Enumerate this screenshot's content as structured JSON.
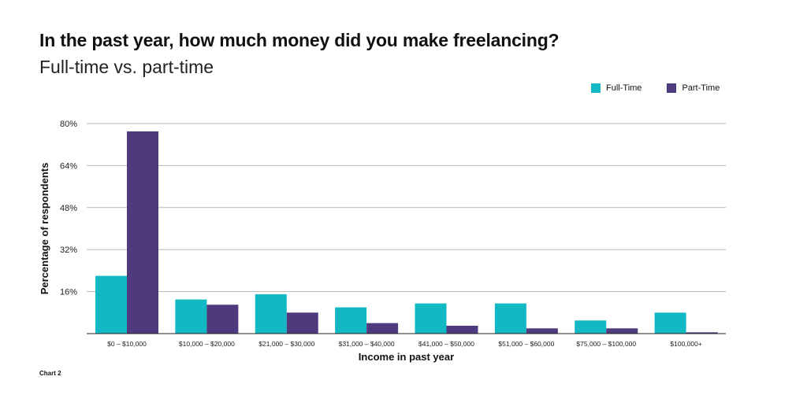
{
  "chart_data": {
    "type": "bar",
    "title": "In the past year, how much money did you make freelancing?",
    "subtitle": "Full-time vs. part-time",
    "xlabel": "Income in past year",
    "ylabel": "Percentage of respondents",
    "ylim": [
      0,
      80
    ],
    "yticks": [
      "16%",
      "32%",
      "48%",
      "64%",
      "80%"
    ],
    "ytick_values": [
      16,
      32,
      48,
      64,
      80
    ],
    "categories": [
      "$0 – $10,000",
      "$10,000 – $20,000",
      "$21,000 – $30,000",
      "$31,000 – $40,000",
      "$41,000 – $50,000",
      "$51,000 – $60,000",
      "$75,000 – $100,000",
      "$100,000+"
    ],
    "series": [
      {
        "name": "Full-Time",
        "color": "#12b8c4",
        "values": [
          22,
          13,
          15,
          10,
          11.5,
          11.5,
          5,
          8
        ]
      },
      {
        "name": "Part-Time",
        "color": "#4f3a7d",
        "values": [
          77,
          11,
          8,
          4,
          3,
          2,
          2,
          0.5
        ]
      }
    ],
    "grid": true,
    "legend_position": "top-right"
  },
  "footer": {
    "note": "Chart 2"
  }
}
